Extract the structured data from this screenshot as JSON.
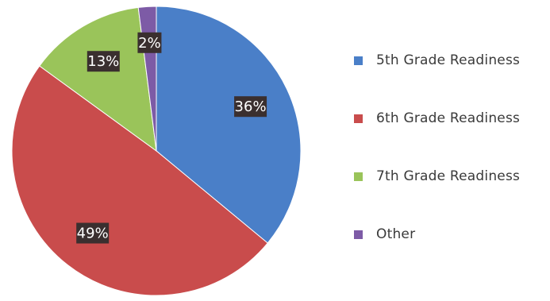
{
  "chart_data": {
    "type": "pie",
    "title": "",
    "categories": [
      "5th Grade Readiness",
      "6th Grade Readiness",
      "7th Grade Readiness",
      "Other"
    ],
    "values": [
      36,
      49,
      13,
      2
    ],
    "value_labels": [
      "36%",
      "49%",
      "13%",
      "2%"
    ],
    "colors": [
      "#4a7fc8",
      "#c94c4c",
      "#9ac45a",
      "#7d5ba6"
    ],
    "start_angle_deg": 0,
    "direction": "clockwise",
    "legend_position": "right"
  }
}
